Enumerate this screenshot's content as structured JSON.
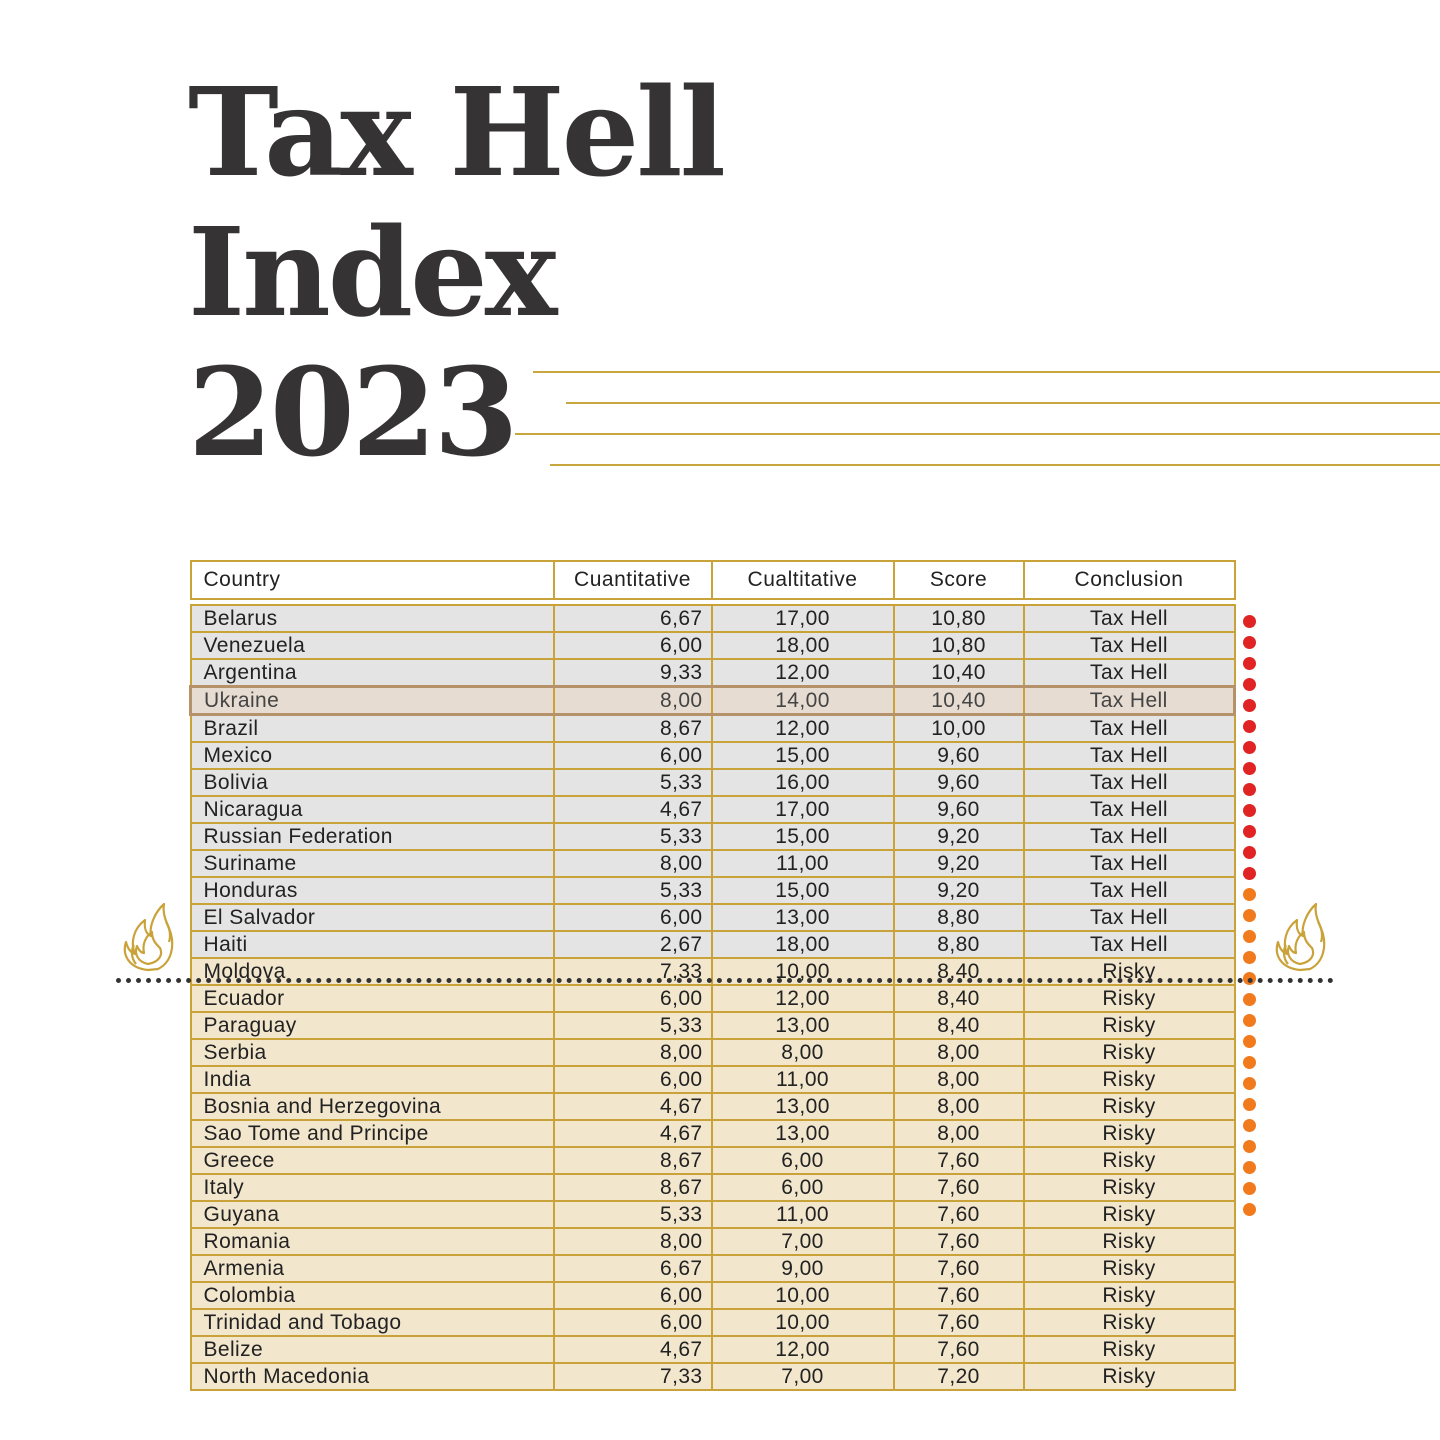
{
  "title": {
    "line1": "Tax Hell",
    "line2": "Index",
    "line3": "2023"
  },
  "colors": {
    "accent": "#c9a23a",
    "tax_hell_dot": "#e02424",
    "risky_dot": "#f07a1c",
    "tax_hell_row": "#e4e4e4",
    "risky_row": "#f2e6cd"
  },
  "icons": {
    "left": "flame-icon",
    "right": "flame-icon"
  },
  "table": {
    "headers": {
      "country": "Country",
      "cuantitative": "Cuantitative",
      "cualtitative": "Cualtitative",
      "score": "Score",
      "conclusion": "Conclusion"
    },
    "rows": [
      {
        "country": "Belarus",
        "cuantitative": "6,67",
        "cualtitative": "17,00",
        "score": "10,80",
        "conclusion": "Tax Hell"
      },
      {
        "country": "Venezuela",
        "cuantitative": "6,00",
        "cualtitative": "18,00",
        "score": "10,80",
        "conclusion": "Tax Hell"
      },
      {
        "country": "Argentina",
        "cuantitative": "9,33",
        "cualtitative": "12,00",
        "score": "10,40",
        "conclusion": "Tax Hell"
      },
      {
        "country": "Ukraine",
        "cuantitative": "8,00",
        "cualtitative": "14,00",
        "score": "10,40",
        "conclusion": "Tax Hell"
      },
      {
        "country": "Brazil",
        "cuantitative": "8,67",
        "cualtitative": "12,00",
        "score": "10,00",
        "conclusion": "Tax Hell"
      },
      {
        "country": "Mexico",
        "cuantitative": "6,00",
        "cualtitative": "15,00",
        "score": "9,60",
        "conclusion": "Tax Hell"
      },
      {
        "country": "Bolivia",
        "cuantitative": "5,33",
        "cualtitative": "16,00",
        "score": "9,60",
        "conclusion": "Tax Hell"
      },
      {
        "country": "Nicaragua",
        "cuantitative": "4,67",
        "cualtitative": "17,00",
        "score": "9,60",
        "conclusion": "Tax Hell"
      },
      {
        "country": "Russian Federation",
        "cuantitative": "5,33",
        "cualtitative": "15,00",
        "score": "9,20",
        "conclusion": "Tax Hell"
      },
      {
        "country": "Suriname",
        "cuantitative": "8,00",
        "cualtitative": "11,00",
        "score": "9,20",
        "conclusion": "Tax Hell"
      },
      {
        "country": "Honduras",
        "cuantitative": "5,33",
        "cualtitative": "15,00",
        "score": "9,20",
        "conclusion": "Tax Hell"
      },
      {
        "country": "El Salvador",
        "cuantitative": "6,00",
        "cualtitative": "13,00",
        "score": "8,80",
        "conclusion": "Tax Hell"
      },
      {
        "country": "Haiti",
        "cuantitative": "2,67",
        "cualtitative": "18,00",
        "score": "8,80",
        "conclusion": "Tax Hell"
      },
      {
        "country": "Moldova",
        "cuantitative": "7,33",
        "cualtitative": "10,00",
        "score": "8,40",
        "conclusion": "Risky"
      },
      {
        "country": "Ecuador",
        "cuantitative": "6,00",
        "cualtitative": "12,00",
        "score": "8,40",
        "conclusion": "Risky"
      },
      {
        "country": "Paraguay",
        "cuantitative": "5,33",
        "cualtitative": "13,00",
        "score": "8,40",
        "conclusion": "Risky"
      },
      {
        "country": "Serbia",
        "cuantitative": "8,00",
        "cualtitative": "8,00",
        "score": "8,00",
        "conclusion": "Risky"
      },
      {
        "country": "India",
        "cuantitative": "6,00",
        "cualtitative": "11,00",
        "score": "8,00",
        "conclusion": "Risky"
      },
      {
        "country": "Bosnia and Herzegovina",
        "cuantitative": "4,67",
        "cualtitative": "13,00",
        "score": "8,00",
        "conclusion": "Risky"
      },
      {
        "country": "Sao Tome and Principe",
        "cuantitative": "4,67",
        "cualtitative": "13,00",
        "score": "8,00",
        "conclusion": "Risky"
      },
      {
        "country": "Greece",
        "cuantitative": "8,67",
        "cualtitative": "6,00",
        "score": "7,60",
        "conclusion": "Risky"
      },
      {
        "country": "Italy",
        "cuantitative": "8,67",
        "cualtitative": "6,00",
        "score": "7,60",
        "conclusion": "Risky"
      },
      {
        "country": "Guyana",
        "cuantitative": "5,33",
        "cualtitative": "11,00",
        "score": "7,60",
        "conclusion": "Risky"
      },
      {
        "country": "Romania",
        "cuantitative": "8,00",
        "cualtitative": "7,00",
        "score": "7,60",
        "conclusion": "Risky"
      },
      {
        "country": "Armenia",
        "cuantitative": "6,67",
        "cualtitative": "9,00",
        "score": "7,60",
        "conclusion": "Risky"
      },
      {
        "country": "Colombia",
        "cuantitative": "6,00",
        "cualtitative": "10,00",
        "score": "7,60",
        "conclusion": "Risky"
      },
      {
        "country": "Trinidad and Tobago",
        "cuantitative": "6,00",
        "cualtitative": "10,00",
        "score": "7,60",
        "conclusion": "Risky"
      },
      {
        "country": "Belize",
        "cuantitative": "4,67",
        "cualtitative": "12,00",
        "score": "7,60",
        "conclusion": "Risky"
      },
      {
        "country": "North Macedonia",
        "cuantitative": "7,33",
        "cualtitative": "7,00",
        "score": "7,20",
        "conclusion": "Risky"
      }
    ]
  }
}
